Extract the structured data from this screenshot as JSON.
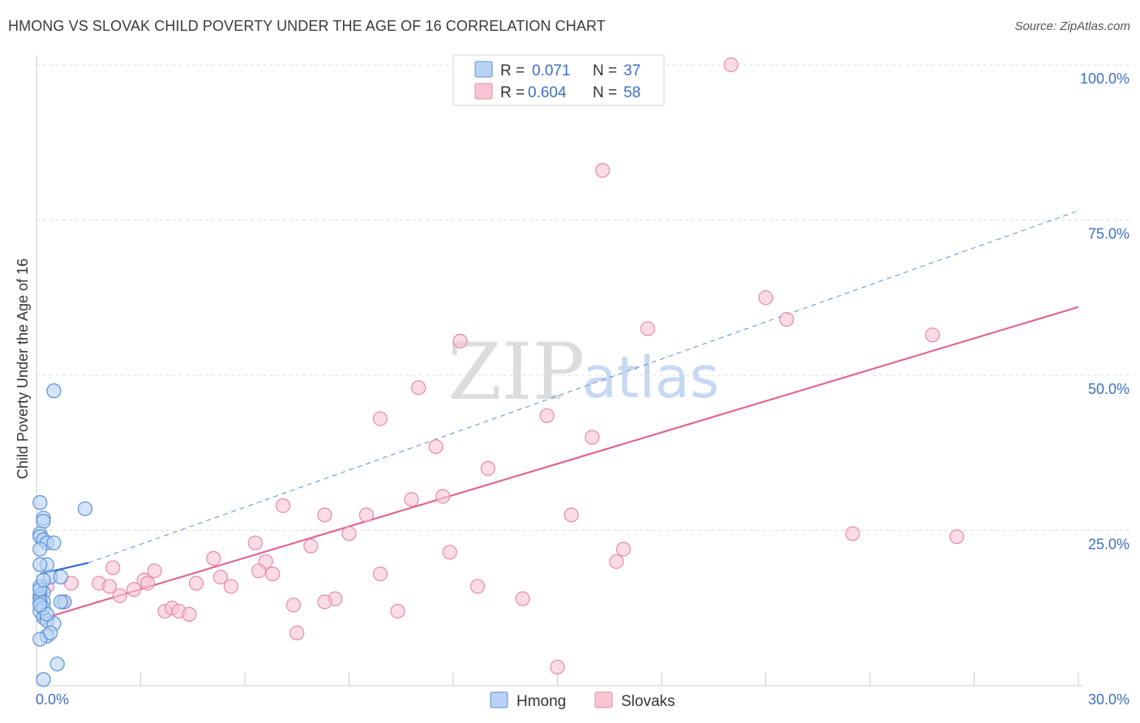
{
  "title": "HMONG VS SLOVAK CHILD POVERTY UNDER THE AGE OF 16 CORRELATION CHART",
  "source": "Source: ZipAtlas.com",
  "watermark": {
    "zip": "ZIP",
    "atlas": "atlas"
  },
  "colors": {
    "hmong_fill": "#b8d3f5",
    "hmong_stroke": "#5b8fd6",
    "hmong_line": "#2f6fd0",
    "slovak_fill": "#f8c5d3",
    "slovak_stroke": "#e58aa6",
    "slovak_line": "#e06690",
    "grid": "#dddddd",
    "tick_text": "#3d6fc4"
  },
  "legend": {
    "hmong": {
      "r_label": "R =",
      "r_value": "0.071",
      "n_label": "N =",
      "n_value": "37"
    },
    "slovak": {
      "r_label": "R =",
      "r_value": "0.604",
      "n_label": "N =",
      "n_value": "58"
    }
  },
  "chart_data": {
    "type": "scatter",
    "title": "HMONG VS SLOVAK CHILD POVERTY UNDER THE AGE OF 16 CORRELATION CHART",
    "xlabel": "",
    "ylabel": "Child Poverty Under the Age of 16",
    "xlim": [
      0,
      30
    ],
    "ylim": [
      0,
      100
    ],
    "x_tick_labels": [
      "0.0%",
      "30.0%"
    ],
    "y_ticks": [
      25,
      50,
      75,
      100
    ],
    "y_tick_labels": [
      "25.0%",
      "50.0%",
      "75.0%",
      "100.0%"
    ],
    "grid": true,
    "legend_position": "top-center",
    "series": [
      {
        "name": "Hmong",
        "points": [
          [
            0.1,
            29.5
          ],
          [
            0.2,
            27.0
          ],
          [
            0.2,
            26.5
          ],
          [
            0.1,
            24.5
          ],
          [
            0.1,
            24.0
          ],
          [
            0.2,
            23.5
          ],
          [
            0.3,
            23.0
          ],
          [
            0.1,
            22.0
          ],
          [
            0.3,
            19.5
          ],
          [
            0.1,
            19.5
          ],
          [
            0.4,
            17.5
          ],
          [
            0.7,
            17.5
          ],
          [
            0.1,
            16.0
          ],
          [
            0.2,
            15.0
          ],
          [
            0.1,
            14.5
          ],
          [
            0.1,
            14.0
          ],
          [
            0.2,
            13.5
          ],
          [
            0.1,
            13.5
          ],
          [
            0.8,
            13.5
          ],
          [
            0.7,
            13.5
          ],
          [
            0.1,
            12.0
          ],
          [
            0.2,
            11.0
          ],
          [
            0.3,
            10.5
          ],
          [
            0.5,
            10.0
          ],
          [
            0.3,
            8.0
          ],
          [
            0.1,
            7.5
          ],
          [
            0.6,
            3.5
          ],
          [
            0.2,
            1.0
          ],
          [
            0.5,
            47.5
          ],
          [
            1.4,
            28.5
          ],
          [
            0.5,
            23.0
          ],
          [
            0.1,
            15.5
          ],
          [
            0.2,
            12.5
          ],
          [
            0.3,
            11.5
          ],
          [
            0.1,
            13.0
          ],
          [
            0.4,
            8.5
          ],
          [
            0.2,
            17.0
          ]
        ],
        "trend": {
          "x": [
            0.1,
            1.5
          ],
          "y": [
            18.0,
            19.8
          ]
        },
        "trend_dashed": {
          "x": [
            1.5,
            30.0
          ],
          "y": [
            19.8,
            76.5
          ]
        }
      },
      {
        "name": "Slovaks",
        "points": [
          [
            20.0,
            100.0
          ],
          [
            16.3,
            83.0
          ],
          [
            21.0,
            62.5
          ],
          [
            21.6,
            59.0
          ],
          [
            17.6,
            57.5
          ],
          [
            12.2,
            55.5
          ],
          [
            25.8,
            56.5
          ],
          [
            11.0,
            48.0
          ],
          [
            9.9,
            43.0
          ],
          [
            14.7,
            43.5
          ],
          [
            11.5,
            38.5
          ],
          [
            16.0,
            40.0
          ],
          [
            13.0,
            35.0
          ],
          [
            11.7,
            30.5
          ],
          [
            10.8,
            30.0
          ],
          [
            7.1,
            29.0
          ],
          [
            8.3,
            27.5
          ],
          [
            9.5,
            27.5
          ],
          [
            15.4,
            27.5
          ],
          [
            23.5,
            24.5
          ],
          [
            26.5,
            24.0
          ],
          [
            9.0,
            24.5
          ],
          [
            6.3,
            23.0
          ],
          [
            7.9,
            22.5
          ],
          [
            11.9,
            21.5
          ],
          [
            16.9,
            22.0
          ],
          [
            5.1,
            20.5
          ],
          [
            6.6,
            20.0
          ],
          [
            16.7,
            20.0
          ],
          [
            6.4,
            18.5
          ],
          [
            6.8,
            18.0
          ],
          [
            9.9,
            18.0
          ],
          [
            2.2,
            19.0
          ],
          [
            3.4,
            18.5
          ],
          [
            5.3,
            17.5
          ],
          [
            3.1,
            17.0
          ],
          [
            1.8,
            16.5
          ],
          [
            4.6,
            16.5
          ],
          [
            3.2,
            16.5
          ],
          [
            5.6,
            16.0
          ],
          [
            2.1,
            16.0
          ],
          [
            2.8,
            15.5
          ],
          [
            12.7,
            16.0
          ],
          [
            1.0,
            16.5
          ],
          [
            0.3,
            16.0
          ],
          [
            2.4,
            14.5
          ],
          [
            8.6,
            14.0
          ],
          [
            8.3,
            13.5
          ],
          [
            14.0,
            14.0
          ],
          [
            7.4,
            13.0
          ],
          [
            0.8,
            13.5
          ],
          [
            3.7,
            12.0
          ],
          [
            3.9,
            12.5
          ],
          [
            4.1,
            12.0
          ],
          [
            4.4,
            11.5
          ],
          [
            10.4,
            12.0
          ],
          [
            7.5,
            8.5
          ],
          [
            15.0,
            3.0
          ]
        ],
        "trend": {
          "x": [
            0.0,
            30.0
          ],
          "y": [
            10.5,
            61.0
          ]
        }
      }
    ]
  }
}
